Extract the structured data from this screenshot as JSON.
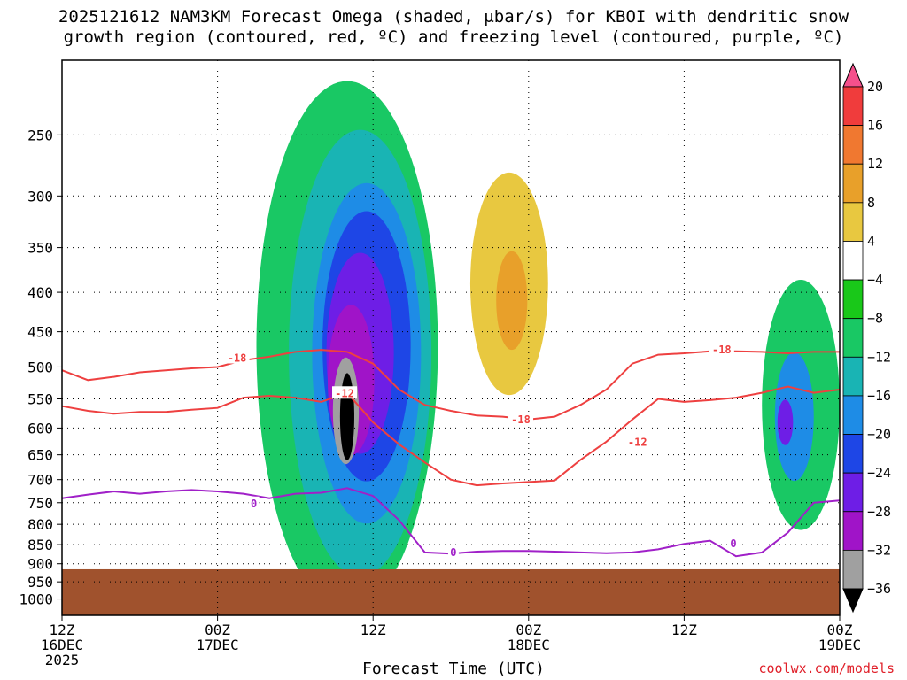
{
  "title": {
    "line1": "2025121612 NAM3KM Forecast Omega (shaded, μbar/s) for KBOI with dendritic snow",
    "line2": "growth region (contoured, red, ºC) and freezing level (contoured, purple, ºC)"
  },
  "xlabel": "Forecast Time (UTC)",
  "credit": "coolwx.com/models",
  "chart_data": {
    "type": "heatmap",
    "title": "2025121612 NAM3KM Forecast Omega (shaded, μbar/s) for KBOI with dendritic snow growth region (contoured, red, ºC) and freezing level (contoured, purple, ºC)",
    "xlabel": "Forecast Time (UTC)",
    "ylabel": "",
    "x_range_hours": [
      0,
      60
    ],
    "y_scale": "log-pressure (hPa), inverted",
    "y_range_hPa": [
      1050,
      200
    ],
    "grid": true,
    "x_ticks": [
      {
        "hour": 0,
        "line1": "12Z",
        "line2": "16DEC",
        "line3": "2025"
      },
      {
        "hour": 12,
        "line1": "00Z",
        "line2": "17DEC",
        "line3": ""
      },
      {
        "hour": 24,
        "line1": "12Z",
        "line2": "",
        "line3": ""
      },
      {
        "hour": 36,
        "line1": "00Z",
        "line2": "18DEC",
        "line3": ""
      },
      {
        "hour": 48,
        "line1": "12Z",
        "line2": "",
        "line3": ""
      },
      {
        "hour": 60,
        "line1": "00Z",
        "line2": "19DEC",
        "line3": ""
      }
    ],
    "y_ticks": [
      250,
      300,
      350,
      400,
      450,
      500,
      550,
      600,
      650,
      700,
      750,
      800,
      850,
      900,
      950,
      1000
    ],
    "colorbar": {
      "levels": [
        20,
        16,
        12,
        8,
        4,
        -4,
        -8,
        -12,
        -16,
        -20,
        -24,
        -28,
        -32,
        -36
      ],
      "colors": [
        "#f5508c",
        "#f03c3c",
        "#f07830",
        "#e8a02a",
        "#e8c840",
        "#ffffff",
        "#19c819",
        "#19c864",
        "#19b4b4",
        "#1e8ce6",
        "#1e46e6",
        "#6e1ee6",
        "#a014c8",
        "#a0a0a0",
        "#000000"
      ]
    },
    "terrain_top_hPa": 915,
    "terrain_color": "#a0522d",
    "contours": {
      "freezing_level": {
        "label": "0",
        "color": "#a020c8",
        "x": [
          0,
          2,
          4,
          6,
          8,
          10,
          12,
          14,
          16,
          18,
          20,
          22,
          24,
          26,
          28,
          30,
          32,
          34,
          36,
          38,
          40,
          42,
          44,
          46,
          48,
          50,
          52,
          54,
          56,
          58,
          60
        ],
        "y": [
          740,
          732,
          725,
          730,
          725,
          722,
          725,
          730,
          740,
          730,
          728,
          718,
          735,
          790,
          870,
          873,
          868,
          866,
          866,
          868,
          870,
          872,
          870,
          862,
          848,
          840,
          880,
          870,
          820,
          750,
          745
        ],
        "labels_at": [
          {
            "x": 14.8,
            "y": 752
          },
          {
            "x": 30.2,
            "y": 870
          },
          {
            "x": 51.8,
            "y": 848
          }
        ]
      },
      "minus_12": {
        "label": "-12",
        "color": "#ee4040",
        "x": [
          0,
          2,
          4,
          6,
          8,
          10,
          12,
          14,
          16,
          18,
          20,
          22,
          24,
          26,
          28,
          30,
          32,
          34,
          36,
          38,
          40,
          42,
          44,
          46,
          48,
          50,
          52,
          54,
          56,
          58,
          60
        ],
        "y": [
          562,
          570,
          575,
          572,
          572,
          568,
          565,
          548,
          545,
          548,
          555,
          540,
          590,
          630,
          665,
          700,
          712,
          708,
          705,
          702,
          660,
          625,
          585,
          550,
          555,
          552,
          548,
          540,
          530,
          540,
          535
        ],
        "labels_at": [
          {
            "x": 21.8,
            "y": 541
          },
          {
            "x": 44.4,
            "y": 626
          }
        ]
      },
      "minus_18": {
        "label": "-18",
        "color": "#ee4040",
        "x": [
          0,
          2,
          4,
          6,
          8,
          10,
          12,
          14,
          16,
          18,
          20,
          22,
          24,
          26,
          28,
          30,
          32,
          34,
          36,
          38,
          40,
          42,
          44,
          46,
          48,
          50,
          52,
          54,
          56,
          58,
          60
        ],
        "y": [
          505,
          520,
          515,
          508,
          505,
          502,
          500,
          490,
          485,
          478,
          475,
          478,
          495,
          535,
          560,
          570,
          578,
          580,
          585,
          580,
          560,
          535,
          495,
          482,
          480,
          477,
          477,
          478,
          480,
          478,
          478
        ],
        "labels_at": [
          {
            "x": 13.5,
            "y": 487
          },
          {
            "x": 35.4,
            "y": 585
          },
          {
            "x": 50.9,
            "y": 475
          }
        ]
      }
    },
    "omega_cells": [
      {
        "x": 22.0,
        "p": 580,
        "rx": 0.55,
        "rp": 150,
        "value": -40
      },
      {
        "x": 21.9,
        "p": 570,
        "rx": 1.0,
        "rp": 180,
        "value": -32
      },
      {
        "x": 22.3,
        "p": 520,
        "rx": 1.8,
        "rp": 230,
        "value": -28
      },
      {
        "x": 23.0,
        "p": 480,
        "rx": 2.6,
        "rp": 280,
        "value": -24
      },
      {
        "x": 23.5,
        "p": 470,
        "rx": 3.4,
        "rp": 360,
        "value": -20
      },
      {
        "x": 23.5,
        "p": 480,
        "rx": 4.2,
        "rp": 450,
        "value": -16
      },
      {
        "x": 23.0,
        "p": 480,
        "rx": 5.5,
        "rp": 560,
        "value": -12
      },
      {
        "x": 22.0,
        "p": 470,
        "rx": 7.0,
        "rp": 620,
        "value": -8
      },
      {
        "x": 34.0,
        "p": 380,
        "rx": 4.5,
        "rp": 400,
        "value": 4
      },
      {
        "x": 34.5,
        "p": 390,
        "rx": 3.0,
        "rp": 250,
        "value": 8
      },
      {
        "x": 34.7,
        "p": 410,
        "rx": 1.2,
        "rp": 120,
        "value": 12
      },
      {
        "x": 57.0,
        "p": 560,
        "rx": 3.0,
        "rp": 400,
        "value": -8
      },
      {
        "x": 56.5,
        "p": 580,
        "rx": 1.5,
        "rp": 220,
        "value": -16
      },
      {
        "x": 55.8,
        "p": 590,
        "rx": 0.6,
        "rp": 80,
        "value": -24
      }
    ]
  }
}
